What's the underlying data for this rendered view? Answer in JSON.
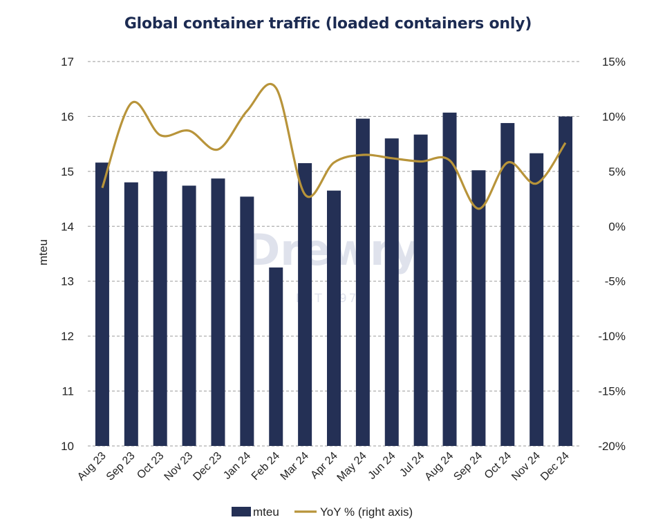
{
  "chart_data": {
    "type": "bar",
    "title": "Global container traffic (loaded containers only)",
    "ylabel": "mteu",
    "ylim": [
      10,
      17
    ],
    "y2lim": [
      -20,
      15
    ],
    "yticks": [
      "10",
      "11",
      "12",
      "13",
      "14",
      "15",
      "16",
      "17"
    ],
    "y2ticks": [
      "-20%",
      "-15%",
      "-10%",
      "-5%",
      "0%",
      "5%",
      "10%",
      "15%"
    ],
    "grid": "horizontal dashed",
    "legend_position": "bottom",
    "categories": [
      "Aug 23",
      "Sep 23",
      "Oct 23",
      "Nov 23",
      "Dec 23",
      "Jan 24",
      "Feb 24",
      "Mar 24",
      "Apr 24",
      "May 24",
      "Jun 24",
      "Jul 24",
      "Aug 24",
      "Sep 24",
      "Oct 24",
      "Nov 24",
      "Dec 24"
    ],
    "series": [
      {
        "name": "mteu",
        "type": "bar",
        "axis": "left",
        "color": "#243055",
        "values": [
          15.16,
          14.8,
          15.0,
          14.74,
          14.87,
          14.54,
          13.25,
          15.15,
          14.65,
          15.96,
          15.6,
          15.67,
          16.07,
          15.02,
          15.88,
          15.33,
          16.0
        ]
      },
      {
        "name": "YoY % (right axis)",
        "type": "line",
        "axis": "right",
        "color": "#b8943a",
        "values": [
          3.5,
          11.2,
          8.3,
          8.7,
          7.0,
          10.5,
          12.6,
          2.9,
          5.8,
          6.5,
          6.2,
          5.9,
          6.0,
          1.6,
          5.8,
          3.9,
          7.6
        ]
      }
    ],
    "watermark": {
      "text": "Drewry",
      "subtext": "EST 1970"
    }
  }
}
